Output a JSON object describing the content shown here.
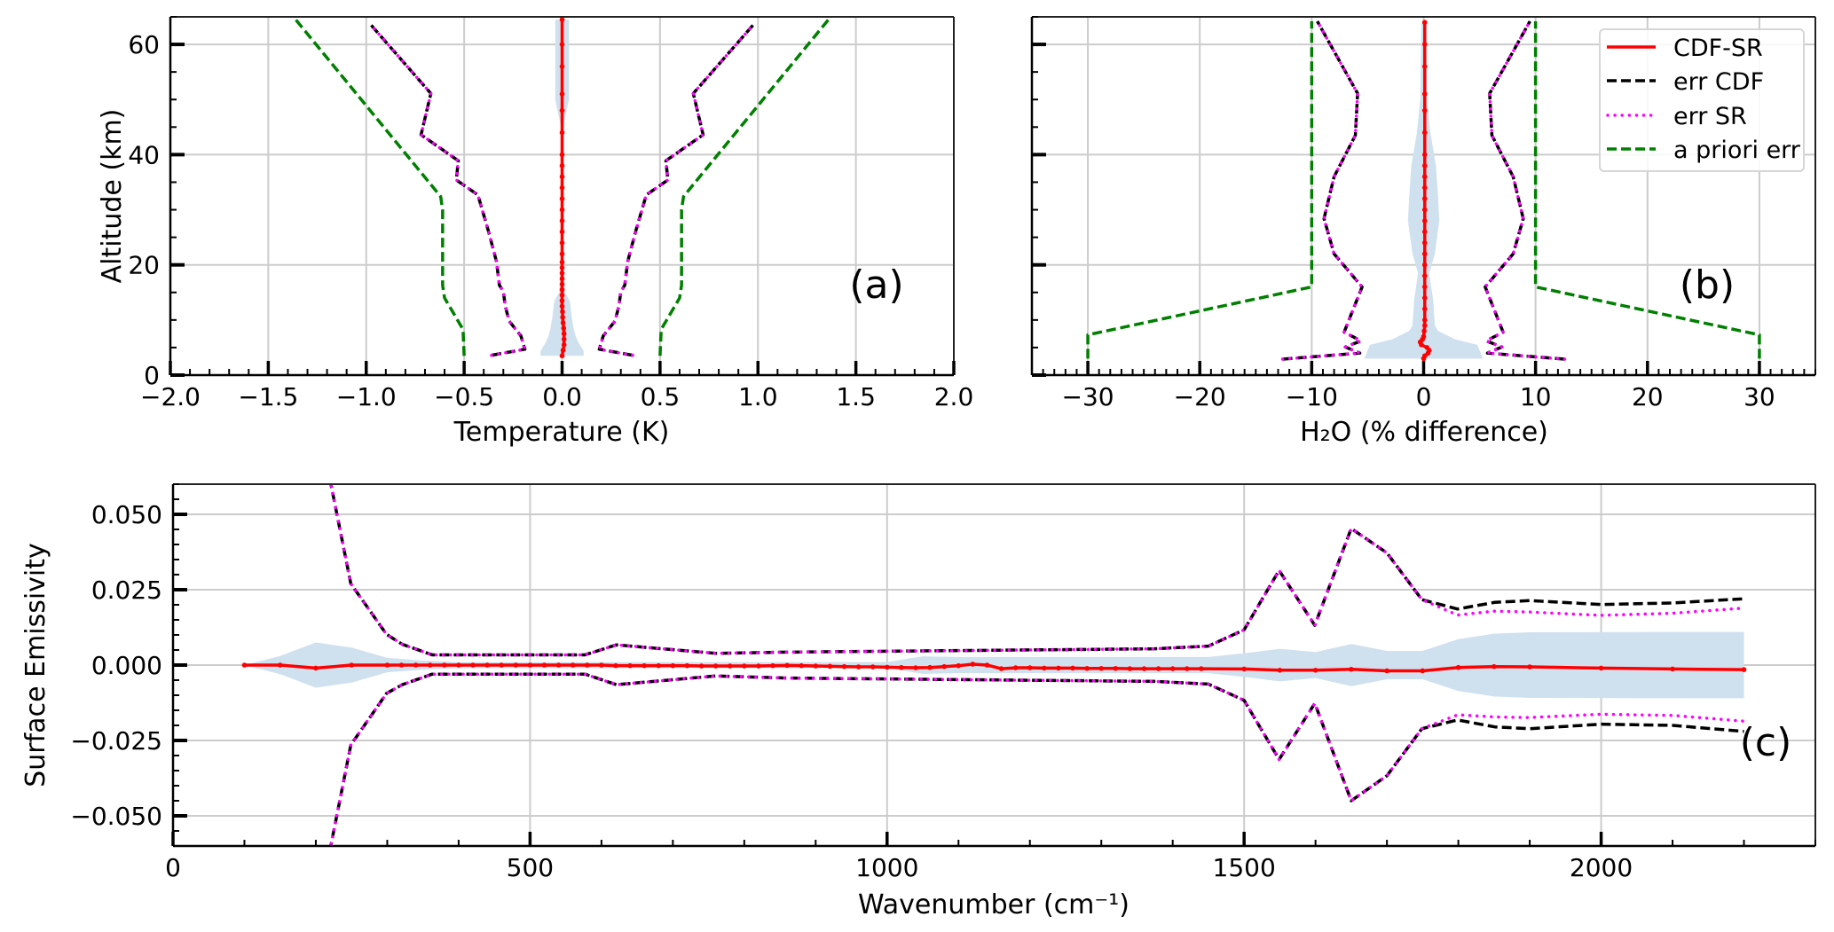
{
  "figure": {
    "legend": {
      "placement": "top-right",
      "panel": "(b)",
      "entries": [
        {
          "label": "CDF-SR",
          "color": "#ff0000",
          "style": "solid"
        },
        {
          "label": "err CDF",
          "color": "#000000",
          "style": "dashed"
        },
        {
          "label": "err SR",
          "color": "#ff00ff",
          "style": "dotted"
        },
        {
          "label": "a priori err",
          "color": "#008000",
          "style": "dashed"
        }
      ]
    },
    "band_color": "#cfe0ef"
  },
  "chart_data": [
    {
      "type": "line",
      "orientation": "profile",
      "panel_label": "(a)",
      "xlabel": "Temperature (K)",
      "ylabel": "Altitude (km)",
      "xlim": [
        -2.0,
        2.0
      ],
      "ylim": [
        0,
        65
      ],
      "xticks": [
        -2.0,
        -1.5,
        -1.0,
        -0.5,
        0.0,
        0.5,
        1.0,
        1.5,
        2.0
      ],
      "xtick_labels": [
        "−2.0",
        "−1.5",
        "−1.0",
        "−0.5",
        "0.0",
        "0.5",
        "1.0",
        "1.5",
        "2.0"
      ],
      "xminor_step": 0.1,
      "yticks": [
        0,
        20,
        40,
        60
      ],
      "ytick_labels": [
        "0",
        "20",
        "40",
        "60"
      ],
      "yminor_step": 5,
      "grid": true,
      "band": {
        "altitude": [
          3.5,
          4.4,
          5.9,
          7.0,
          8.3,
          10.4,
          13.4,
          15.0,
          18,
          20,
          45,
          50,
          64.5
        ],
        "halfwidth": [
          0.11,
          0.11,
          0.084,
          0.07,
          0.06,
          0.05,
          0.04,
          0.015,
          0.008,
          0.005,
          0.005,
          0.035,
          0.035
        ]
      },
      "series": [
        {
          "name": "a priori err",
          "color": "#008000",
          "style": "dashed",
          "symmetric": true,
          "altitude": [
            3.5,
            8.3,
            14,
            16.3,
            30,
            32.4,
            64.5
          ],
          "values": [
            0.5,
            0.506,
            0.6,
            0.61,
            0.61,
            0.62,
            1.36
          ]
        },
        {
          "name": "err CDF",
          "color": "#000000",
          "style": "dashed",
          "symmetric": true,
          "altitude": [
            3.6,
            4.7,
            7.1,
            9.8,
            12.5,
            15.2,
            16.3,
            20.6,
            26.0,
            32.7,
            35.4,
            38.9,
            43.6,
            51.1,
            63.7
          ],
          "values": [
            0.36,
            0.19,
            0.21,
            0.27,
            0.29,
            0.3,
            0.32,
            0.335,
            0.375,
            0.43,
            0.54,
            0.53,
            0.72,
            0.67,
            0.98
          ]
        },
        {
          "name": "err SR",
          "color": "#ff00ff",
          "style": "dotted",
          "symmetric": true,
          "altitude": [
            3.6,
            4.7,
            7.1,
            9.8,
            12.5,
            15.2,
            16.3,
            20.6,
            26.0,
            32.7,
            35.4,
            38.9,
            43.6,
            51.1,
            63.7
          ],
          "values": [
            0.36,
            0.19,
            0.21,
            0.27,
            0.29,
            0.3,
            0.32,
            0.335,
            0.375,
            0.43,
            0.54,
            0.53,
            0.72,
            0.67,
            0.98
          ]
        },
        {
          "name": "CDF-SR",
          "color": "#ff0000",
          "style": "solid",
          "markers": true,
          "altitude": [
            3.5,
            4.5,
            5.5,
            6.5,
            7.5,
            8.5,
            9.5,
            10.5,
            11.5,
            12.5,
            13.5,
            14.5,
            15.5,
            16.5,
            17.5,
            18.5,
            19.5,
            20.5,
            22,
            24,
            26,
            28,
            30,
            32,
            34,
            36,
            38,
            40,
            44,
            48,
            51,
            56,
            60,
            64.5
          ],
          "values": [
            0,
            0.005,
            0.01,
            0.01,
            0.01,
            0.008,
            0.005,
            0.003,
            0.002,
            0,
            0,
            0,
            0,
            0,
            0,
            0,
            0,
            0,
            0,
            0,
            0,
            0,
            0,
            0,
            0,
            0,
            0,
            0,
            0,
            0,
            0,
            0,
            0,
            0
          ]
        }
      ]
    },
    {
      "type": "line",
      "orientation": "profile",
      "panel_label": "(b)",
      "xlabel": "H₂O (% difference)",
      "ylabel": "",
      "xlim": [
        -35,
        35
      ],
      "ylim": [
        0,
        65
      ],
      "xticks": [
        -30,
        -20,
        -10,
        0,
        10,
        20,
        30
      ],
      "xtick_labels": [
        "−30",
        "−20",
        "−10",
        "0",
        "10",
        "20",
        "30"
      ],
      "xminor_step": 1,
      "yticks": [
        0,
        20,
        40,
        60
      ],
      "ytick_labels": [],
      "yminor_step": 5,
      "grid": true,
      "band": {
        "altitude": [
          3,
          4.5,
          5.5,
          6.5,
          8,
          9,
          13.6,
          18.5,
          22,
          28,
          32,
          38,
          44,
          50,
          64
        ],
        "halfwidth": [
          5.3,
          5.0,
          4.8,
          2.8,
          1.3,
          1.0,
          0.85,
          0.5,
          1.0,
          1.4,
          1.3,
          1.1,
          0.6,
          0.3,
          0.2
        ]
      },
      "series": [
        {
          "name": "a priori err",
          "color": "#008000",
          "style": "dashed",
          "symmetric": true,
          "altitude": [
            3,
            7.3,
            16,
            64.2
          ],
          "values": [
            30,
            30,
            10,
            10
          ]
        },
        {
          "name": "err CDF",
          "color": "#000000",
          "style": "dashed",
          "symmetric": true,
          "altitude": [
            2.9,
            4.0,
            5.1,
            6.2,
            7.8,
            16.0,
            22,
            28.4,
            36,
            43.5,
            51.1,
            64.2
          ],
          "values": [
            12.6,
            5.7,
            7.0,
            5.6,
            7.1,
            5.5,
            8.0,
            8.9,
            8.0,
            6.1,
            5.9,
            9.5
          ]
        },
        {
          "name": "err SR",
          "color": "#ff00ff",
          "style": "dotted",
          "symmetric": true,
          "altitude": [
            2.9,
            4.0,
            5.1,
            6.2,
            7.8,
            16.0,
            22,
            28.4,
            36,
            43.5,
            51.1,
            64.2
          ],
          "values": [
            12.6,
            5.7,
            7.0,
            5.6,
            7.1,
            5.5,
            8.0,
            8.9,
            8.0,
            6.1,
            5.9,
            9.5
          ]
        },
        {
          "name": "CDF-SR",
          "color": "#ff0000",
          "style": "solid",
          "markers": true,
          "altitude": [
            3,
            3.5,
            4,
            4.5,
            5,
            5.5,
            6,
            6.5,
            7,
            8,
            9,
            10,
            12,
            14,
            16,
            18,
            20,
            22,
            24,
            26,
            28,
            30,
            32,
            34,
            36,
            38,
            40,
            44,
            48,
            51,
            56,
            60,
            64
          ],
          "values": [
            0,
            0.1,
            0.4,
            0.5,
            0.3,
            -0.2,
            -0.3,
            -0.1,
            0,
            0.05,
            0.1,
            0.1,
            0.1,
            0.1,
            0.1,
            0.1,
            0.1,
            0.1,
            0.1,
            0.1,
            0.1,
            0.1,
            0.1,
            0.1,
            0.1,
            0.1,
            0.1,
            0.1,
            0.1,
            0.1,
            0.1,
            0.1,
            0.1
          ]
        }
      ]
    },
    {
      "type": "line",
      "orientation": "spectrum",
      "panel_label": "(c)",
      "xlabel": "Wavenumber (cm⁻¹)",
      "ylabel": "Surface Emissivity",
      "xlim": [
        0,
        2300
      ],
      "ylim": [
        -0.06,
        0.06
      ],
      "xticks": [
        0,
        500,
        1000,
        1500,
        2000
      ],
      "xtick_labels": [
        "0",
        "500",
        "1000",
        "1500",
        "2000"
      ],
      "xminor_step": 100,
      "yticks": [
        -0.05,
        -0.025,
        0.0,
        0.025,
        0.05
      ],
      "ytick_labels": [
        "−0.050",
        "−0.025",
        "0.000",
        "0.025",
        "0.050"
      ],
      "yminor_step": 0.005,
      "grid": true,
      "band": {
        "x": [
          100,
          150,
          200,
          250,
          300,
          350,
          400,
          600,
          1000,
          1050,
          1100,
          1450,
          1500,
          1550,
          1600,
          1650,
          1700,
          1750,
          1800,
          1850,
          1900,
          2200
        ],
        "halfwidth": [
          0,
          0.003,
          0.0075,
          0.0058,
          0.0024,
          0.0015,
          0.001,
          0.001,
          0.001,
          0.0029,
          0.0027,
          0.0027,
          0.0039,
          0.0054,
          0.0043,
          0.007,
          0.0047,
          0.0047,
          0.0086,
          0.0104,
          0.0109,
          0.011
        ]
      },
      "series": [
        {
          "name": "err CDF",
          "color": "#000000",
          "style": "dashed",
          "x": [
            200,
            249,
            299,
            321,
            363,
            577,
            621,
            760,
            860,
            1374,
            1450,
            1500,
            1549,
            1599,
            1650,
            1700,
            1749,
            1799,
            1851,
            1900,
            2000,
            2100,
            2200
          ],
          "upper": [
            0.085,
            0.027,
            0.0102,
            0.0069,
            0.0034,
            0.0034,
            0.0067,
            0.0039,
            0.0043,
            0.0054,
            0.0063,
            0.0117,
            0.0314,
            0.0132,
            0.0453,
            0.0372,
            0.0217,
            0.0186,
            0.0208,
            0.0214,
            0.0201,
            0.0206,
            0.022
          ],
          "lower": [
            -0.085,
            -0.0265,
            -0.0094,
            -0.0065,
            -0.003,
            -0.003,
            -0.0065,
            -0.0036,
            -0.0043,
            -0.0054,
            -0.0063,
            -0.0117,
            -0.0313,
            -0.0127,
            -0.045,
            -0.0367,
            -0.0211,
            -0.0182,
            -0.0205,
            -0.0211,
            -0.0196,
            -0.02,
            -0.022
          ]
        },
        {
          "name": "err SR",
          "color": "#ff00ff",
          "style": "dotted",
          "x": [
            200,
            249,
            299,
            321,
            363,
            577,
            621,
            760,
            860,
            1374,
            1450,
            1500,
            1549,
            1599,
            1650,
            1700,
            1749,
            1799,
            1851,
            1900,
            2000,
            2100,
            2200
          ],
          "upper": [
            0.085,
            0.027,
            0.0102,
            0.0069,
            0.0034,
            0.0034,
            0.0067,
            0.0039,
            0.0043,
            0.0054,
            0.0063,
            0.0117,
            0.0314,
            0.0132,
            0.0453,
            0.0372,
            0.0217,
            0.0166,
            0.0179,
            0.0176,
            0.0165,
            0.0172,
            0.0189
          ],
          "lower": [
            -0.085,
            -0.0265,
            -0.0094,
            -0.0065,
            -0.003,
            -0.003,
            -0.0065,
            -0.0036,
            -0.0043,
            -0.0054,
            -0.0063,
            -0.0117,
            -0.0313,
            -0.0127,
            -0.045,
            -0.0367,
            -0.0211,
            -0.0165,
            -0.0172,
            -0.0174,
            -0.0163,
            -0.0167,
            -0.0186
          ]
        },
        {
          "name": "CDF-SR",
          "color": "#ff0000",
          "style": "solid",
          "markers": true,
          "x": [
            100,
            150,
            200,
            250,
            300,
            320,
            340,
            360,
            380,
            400,
            420,
            440,
            460,
            480,
            500,
            520,
            540,
            560,
            580,
            600,
            620,
            640,
            660,
            680,
            700,
            720,
            740,
            760,
            780,
            800,
            820,
            840,
            860,
            880,
            900,
            920,
            940,
            960,
            980,
            1000,
            1020,
            1040,
            1060,
            1080,
            1100,
            1120,
            1140,
            1160,
            1180,
            1200,
            1220,
            1240,
            1260,
            1280,
            1300,
            1320,
            1340,
            1360,
            1380,
            1400,
            1420,
            1440,
            1500,
            1550,
            1600,
            1650,
            1700,
            1750,
            1800,
            1850,
            1900,
            2000,
            2100,
            2200
          ],
          "values": [
            0,
            0,
            -0.001,
            0,
            0,
            0,
            0,
            0,
            0,
            0,
            0,
            0,
            0,
            0,
            0,
            0,
            0,
            0,
            0,
            0,
            -0.0002,
            -0.0002,
            -0.0002,
            -0.0002,
            -0.0002,
            -0.0002,
            -0.0003,
            -0.0003,
            -0.0003,
            -0.0003,
            -0.0003,
            -0.0002,
            -0.0001,
            -0.0002,
            -0.0003,
            -0.0004,
            -0.0005,
            -0.0006,
            -0.0006,
            -0.0007,
            -0.0008,
            -0.0009,
            -0.0008,
            -0.0005,
            -0.0002,
            0.0003,
            0,
            -0.0012,
            -0.0009,
            -0.0009,
            -0.001,
            -0.001,
            -0.001,
            -0.0011,
            -0.0011,
            -0.0011,
            -0.0012,
            -0.0012,
            -0.0012,
            -0.0012,
            -0.0012,
            -0.0012,
            -0.0013,
            -0.0017,
            -0.0017,
            -0.0014,
            -0.0019,
            -0.0019,
            -0.0008,
            -0.0005,
            -0.0006,
            -0.001,
            -0.0013,
            -0.0015
          ]
        }
      ]
    }
  ]
}
